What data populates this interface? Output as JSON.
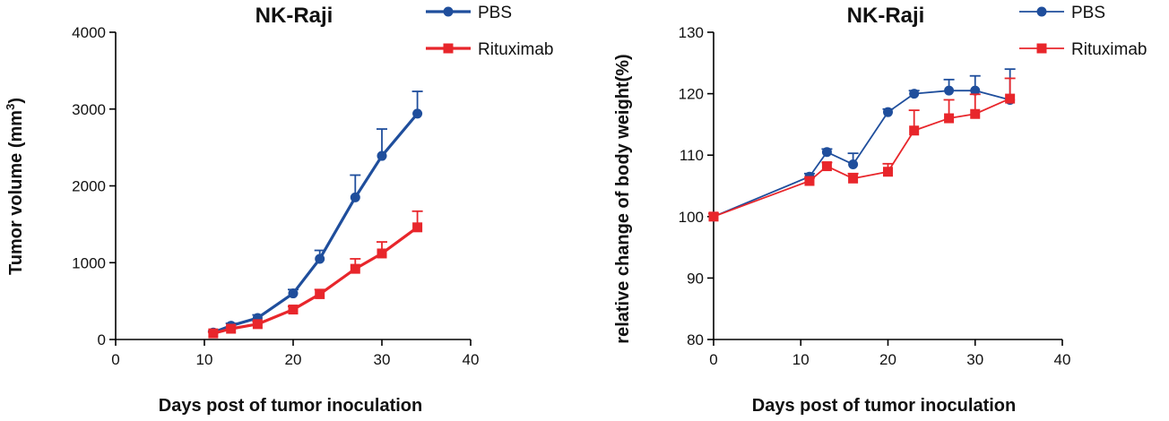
{
  "chart_data": [
    {
      "type": "line",
      "title": "NK-Raji",
      "xlabel": "Days post of tumor inoculation",
      "ylabel": "Tumor volume (mm",
      "ylabel_superscript": "3",
      "ylabel_suffix": ")",
      "xlim": [
        0,
        40
      ],
      "ylim": [
        0,
        4000
      ],
      "xticks": [
        0,
        10,
        20,
        30,
        40
      ],
      "yticks": [
        0,
        1000,
        2000,
        3000,
        4000
      ],
      "grid": false,
      "legend_position": "top-right",
      "series": [
        {
          "name": "PBS",
          "color": "#1f4e9c",
          "marker": "circle",
          "x": [
            11,
            13,
            16,
            20,
            23,
            27,
            30,
            34
          ],
          "y": [
            90,
            180,
            280,
            600,
            1050,
            1850,
            2390,
            2940
          ],
          "error": [
            20,
            30,
            40,
            50,
            110,
            290,
            350,
            290
          ]
        },
        {
          "name": "Rituximab",
          "color": "#e8262b",
          "marker": "square",
          "x": [
            11,
            13,
            16,
            20,
            23,
            27,
            30,
            34
          ],
          "y": [
            80,
            140,
            200,
            390,
            590,
            920,
            1120,
            1460
          ],
          "error": [
            15,
            20,
            30,
            40,
            60,
            130,
            150,
            210
          ]
        }
      ]
    },
    {
      "type": "line",
      "title": "NK-Raji",
      "xlabel": "Days post of tumor inoculation",
      "ylabel": "relative change of body weight(%)",
      "xlim": [
        0,
        40
      ],
      "ylim": [
        80,
        130
      ],
      "xticks": [
        0,
        10,
        20,
        30,
        40
      ],
      "yticks": [
        80,
        90,
        100,
        110,
        120,
        130
      ],
      "grid": false,
      "legend_position": "top-right",
      "series": [
        {
          "name": "PBS",
          "color": "#1f4e9c",
          "marker": "circle",
          "x": [
            0,
            11,
            13,
            16,
            20,
            23,
            27,
            30,
            34
          ],
          "y": [
            100,
            106.5,
            110.5,
            108.5,
            117,
            120,
            120.5,
            120.5,
            119
          ],
          "error": [
            0.5,
            0.5,
            0.5,
            1.8,
            0.5,
            0.5,
            1.8,
            2.4,
            5.0
          ]
        },
        {
          "name": "Rituximab",
          "color": "#e8262b",
          "marker": "square",
          "x": [
            0,
            11,
            13,
            16,
            20,
            23,
            27,
            30,
            34
          ],
          "y": [
            100,
            105.8,
            108.2,
            106.2,
            107.3,
            114,
            116,
            116.7,
            119.2
          ],
          "error": [
            0.5,
            0.5,
            0.6,
            0.8,
            1.3,
            3.3,
            3.0,
            3.2,
            3.3
          ]
        }
      ]
    }
  ]
}
